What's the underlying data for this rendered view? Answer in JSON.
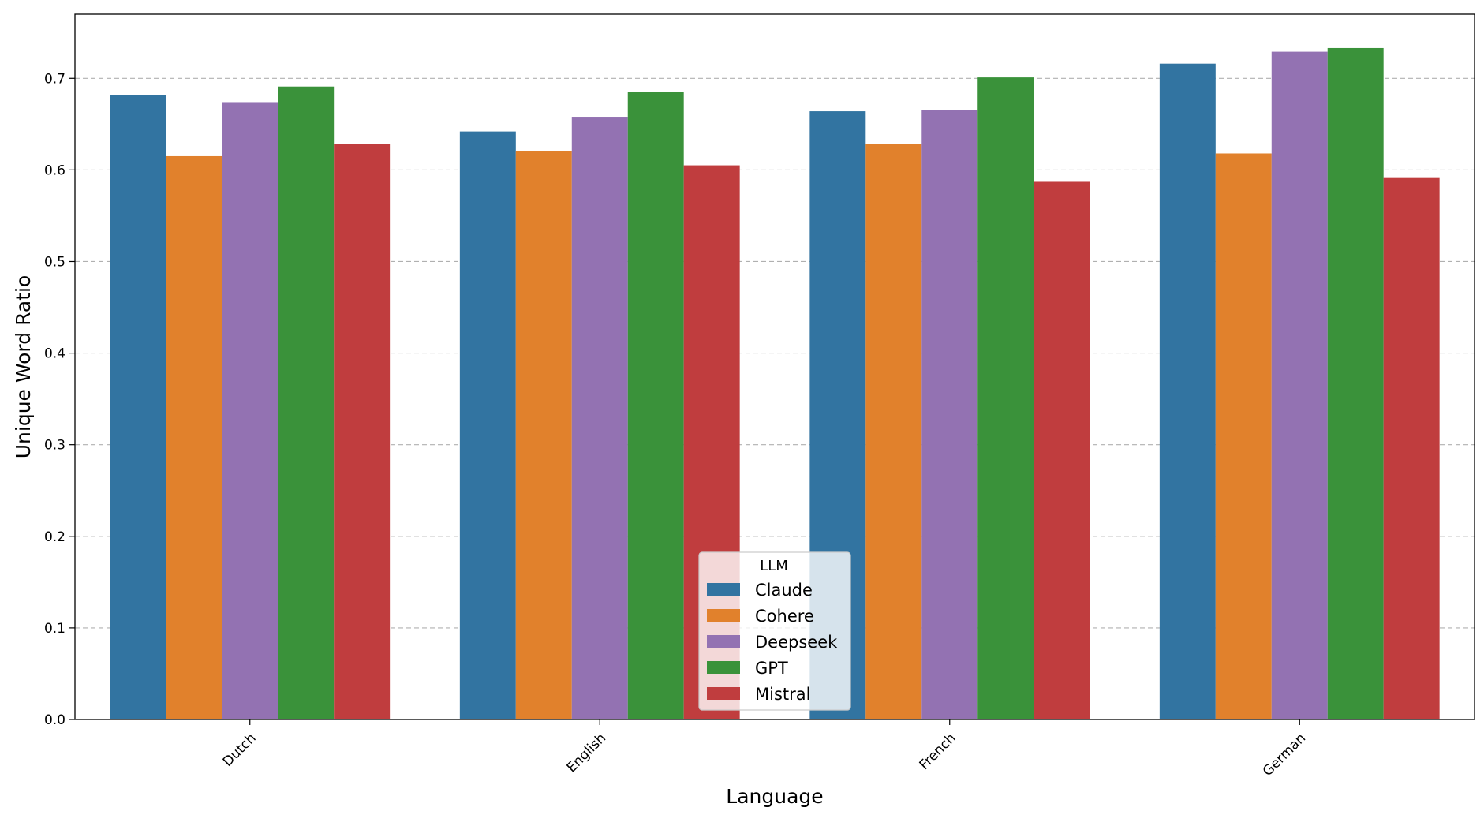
{
  "chart_data": {
    "type": "bar",
    "xlabel": "Language",
    "ylabel": "Unique Word Ratio",
    "categories": [
      "Dutch",
      "English",
      "French",
      "German"
    ],
    "ylim": [
      0,
      0.77
    ],
    "yticks": [
      "0.0",
      "0.1",
      "0.2",
      "0.3",
      "0.4",
      "0.5",
      "0.6",
      "0.7"
    ],
    "grid": "horizontal dashed",
    "legend": {
      "title": "LLM",
      "placement": "bottom-center"
    },
    "series": [
      {
        "name": "Claude",
        "color": "#3274a1",
        "values": [
          0.682,
          0.642,
          0.664,
          0.716
        ]
      },
      {
        "name": "Cohere",
        "color": "#e1812c",
        "values": [
          0.615,
          0.621,
          0.628,
          0.618
        ]
      },
      {
        "name": "Deepseek",
        "color": "#9372b2",
        "values": [
          0.674,
          0.658,
          0.665,
          0.729
        ]
      },
      {
        "name": "GPT",
        "color": "#3a923a",
        "values": [
          0.691,
          0.685,
          0.701,
          0.733
        ]
      },
      {
        "name": "Mistral",
        "color": "#c03d3e",
        "values": [
          0.628,
          0.605,
          0.587,
          0.592
        ]
      }
    ]
  }
}
